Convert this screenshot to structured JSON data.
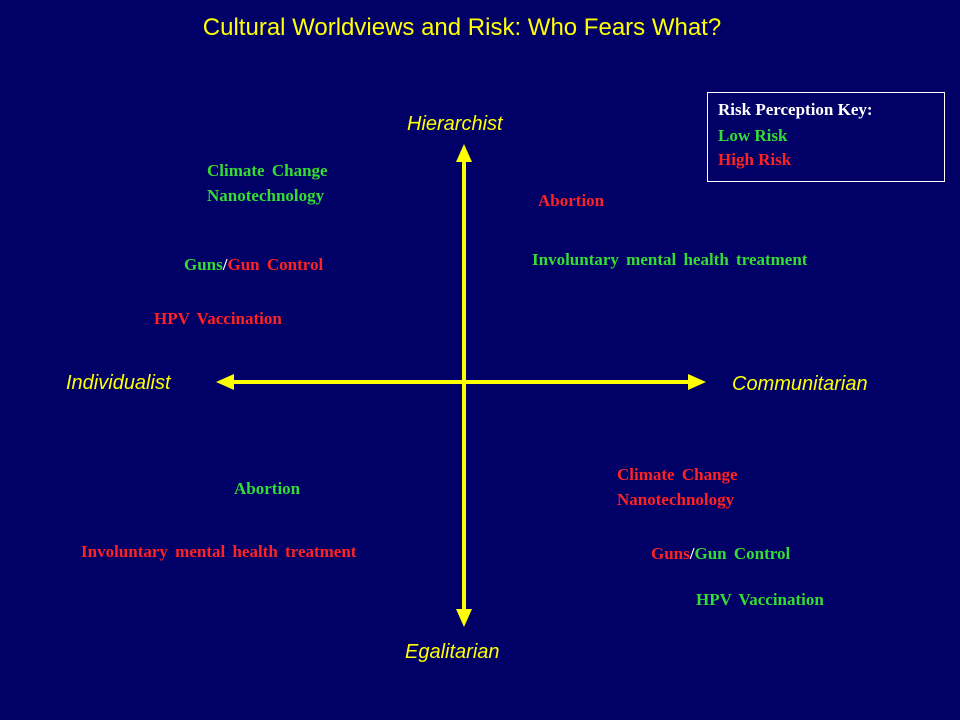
{
  "title": "Cultural Worldviews and Risk: Who Fears What?",
  "axes": {
    "top": "Hierarchist",
    "bottom": "Egalitarian",
    "left": "Individualist",
    "right": "Communitarian"
  },
  "key": {
    "heading": "Risk Perception Key:",
    "low": "Low Risk",
    "high": "High Risk"
  },
  "colors": {
    "low": "#33dd33",
    "high": "#ff2222",
    "axis": "#ffff00",
    "background": "#000066"
  },
  "quadrants": {
    "hierarchist_individualist": {
      "climate": "Climate Change",
      "nano": "Nanotechnology",
      "guns": "Guns",
      "slash": "/",
      "gun_control": "Gun Control",
      "hpv": "HPV Vaccination"
    },
    "hierarchist_communitarian": {
      "abortion": "Abortion",
      "involuntary": "Involuntary mental health treatment"
    },
    "egalitarian_individualist": {
      "abortion": "Abortion",
      "involuntary": "Involuntary mental health treatment"
    },
    "egalitarian_communitarian": {
      "climate": "Climate Change",
      "nano": "Nanotechnology",
      "guns": "Guns",
      "slash": "/",
      "gun_control": "Gun Control",
      "hpv": "HPV Vaccination"
    }
  }
}
